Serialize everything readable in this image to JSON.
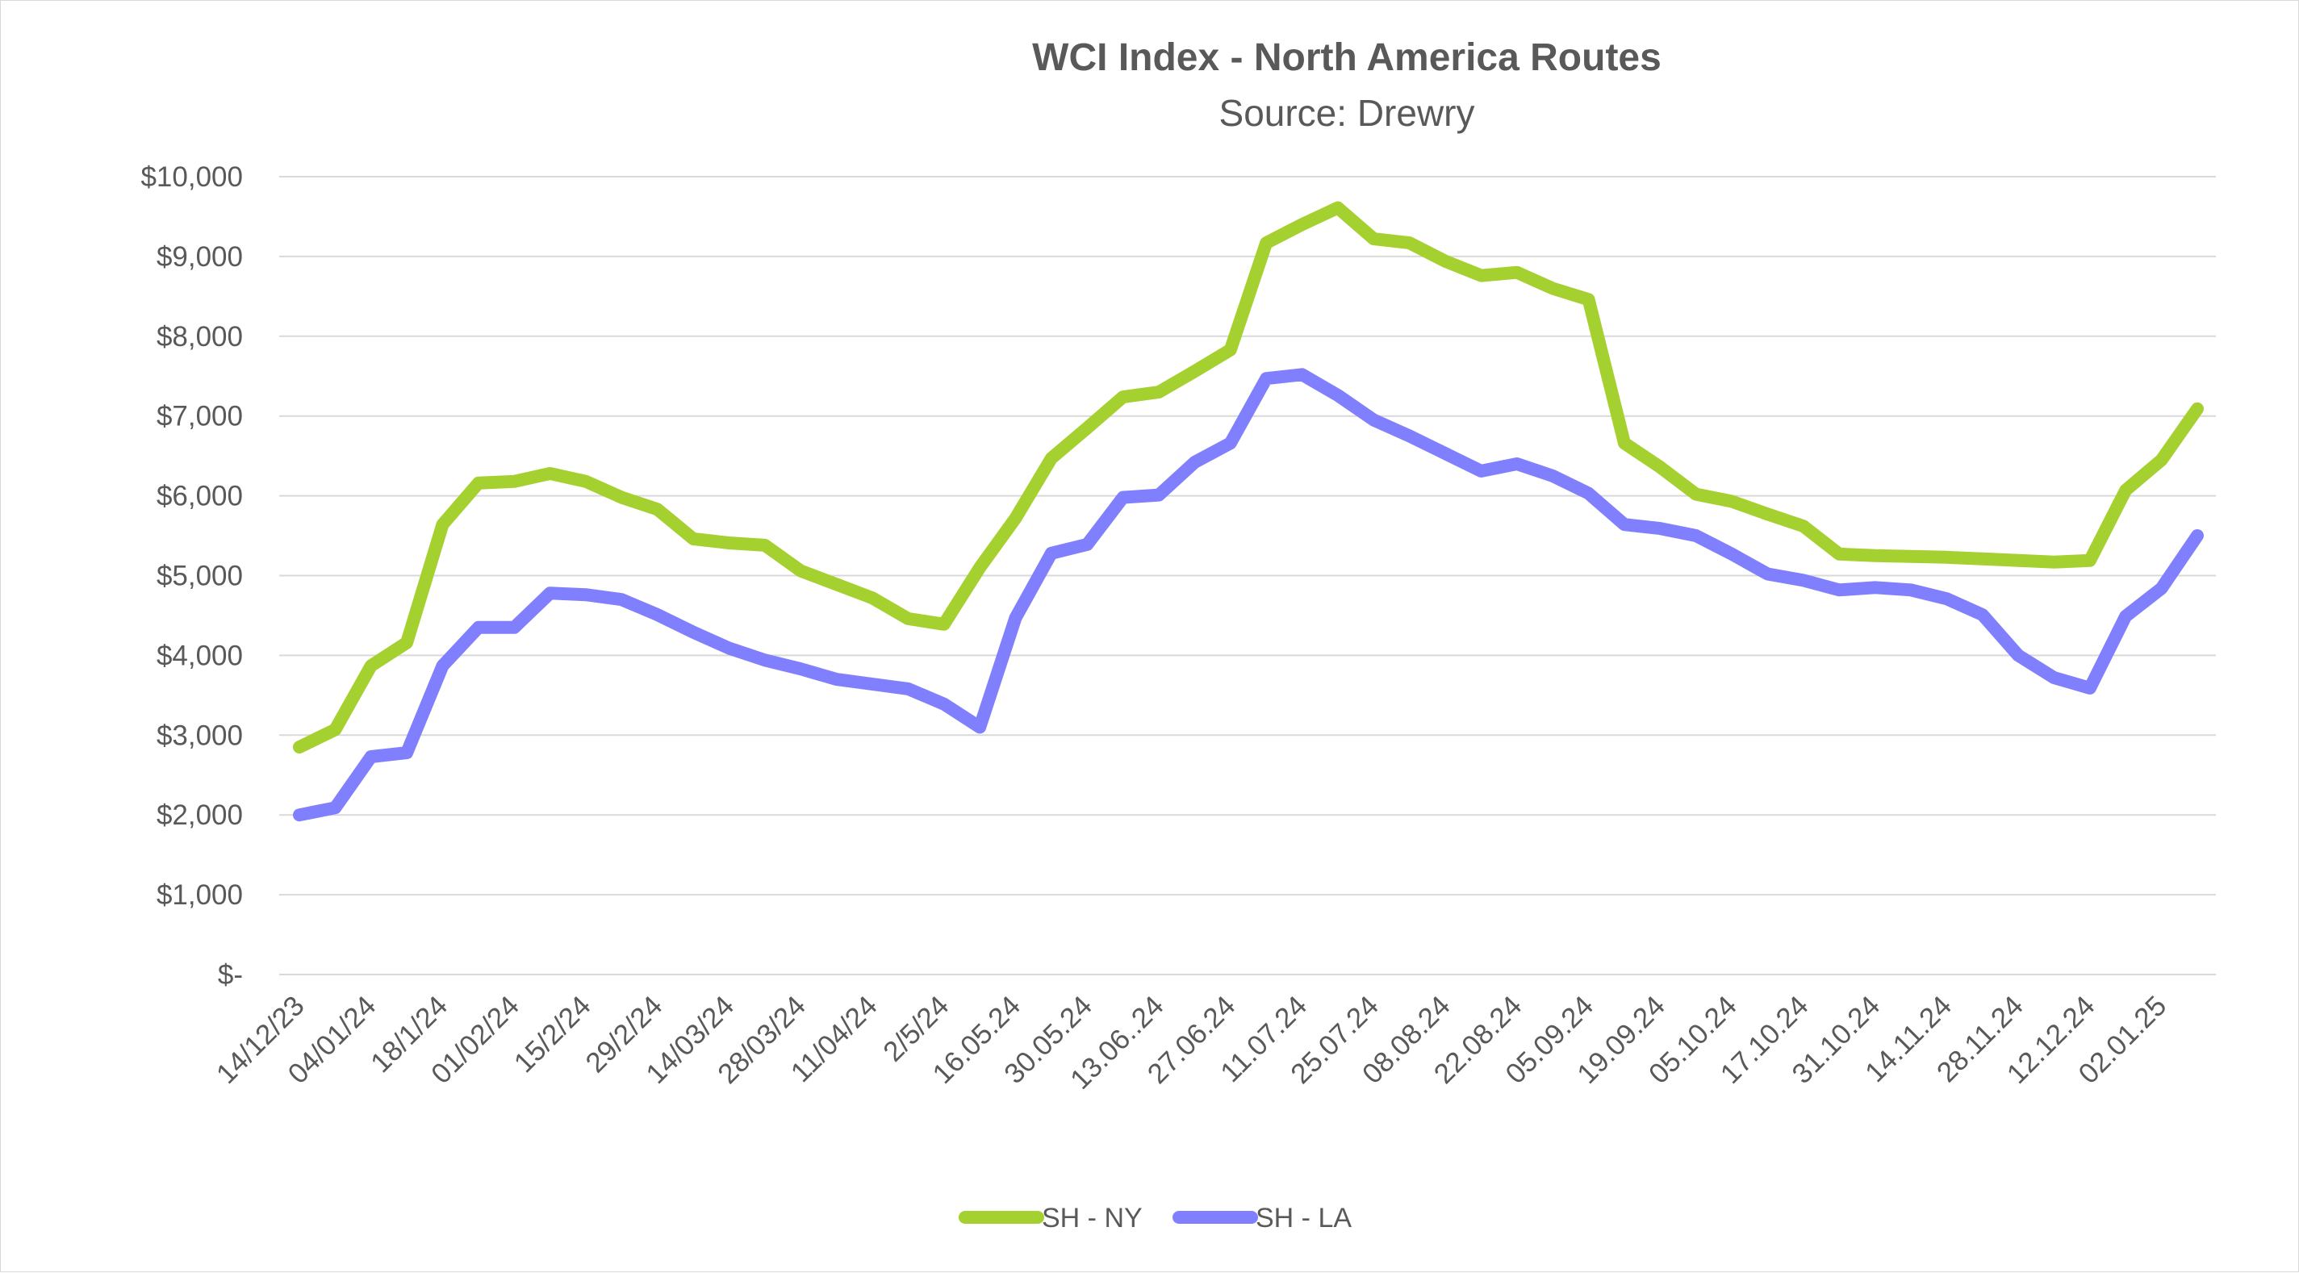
{
  "chart_data": {
    "type": "line",
    "title": "WCI Index - North America Routes",
    "subtitle": "Source: Drewry",
    "ylim": [
      0,
      10000
    ],
    "yticks": [
      0,
      1000,
      2000,
      3000,
      4000,
      5000,
      6000,
      7000,
      8000,
      9000,
      10000
    ],
    "ytick_labels": [
      "$-",
      "$1,000",
      "$2,000",
      "$3,000",
      "$4,000",
      "$5,000",
      "$6,000",
      "$7,000",
      "$8,000",
      "$9,000",
      "$10,000"
    ],
    "tick_labels": [
      "14/12/23",
      "04/01/24",
      "18/1/24",
      "01/02/24",
      "15/2/24",
      "29/2/24",
      "14/03/24",
      "28/03/24",
      "11/04/24",
      "2/5/24",
      "16.05.24",
      "30.05.24",
      "13.06..24",
      "27.06.24",
      "11.07.24",
      "25.07.24",
      "08.08.24",
      "22.08.24",
      "05.09.24",
      "19.09.24",
      "05.10.24",
      "17.10.24",
      "31.10.24",
      "14.11.24",
      "28.11.24",
      "12.12.24",
      "02.01.25"
    ],
    "grid": true,
    "legend_position": "bottom",
    "series": [
      {
        "name": "SH - NY",
        "color": "#a5d130",
        "values": [
          2850,
          3070,
          3870,
          4160,
          5640,
          6160,
          6180,
          6280,
          6180,
          5980,
          5830,
          5460,
          5410,
          5380,
          5060,
          4890,
          4720,
          4460,
          4390,
          5100,
          5720,
          6470,
          6850,
          7240,
          7300,
          7560,
          7830,
          9170,
          9400,
          9610,
          9220,
          9170,
          8940,
          8760,
          8800,
          8600,
          8460,
          6660,
          6360,
          6020,
          5930,
          5770,
          5620,
          5270,
          5250,
          5240,
          5230,
          5210,
          5190,
          5170,
          5190,
          6070,
          6450,
          7090
        ]
      },
      {
        "name": "SH - LA",
        "color": "#8080ff",
        "values": [
          2000,
          2090,
          2730,
          2780,
          3870,
          4350,
          4350,
          4780,
          4760,
          4700,
          4510,
          4290,
          4090,
          3940,
          3830,
          3700,
          3640,
          3580,
          3390,
          3100,
          4470,
          5280,
          5390,
          5980,
          6010,
          6420,
          6660,
          7470,
          7520,
          7260,
          6950,
          6750,
          6530,
          6310,
          6400,
          6250,
          6030,
          5640,
          5590,
          5500,
          5270,
          5020,
          4940,
          4820,
          4850,
          4820,
          4710,
          4510,
          4000,
          3720,
          3590,
          4490,
          4840,
          5500
        ]
      }
    ]
  }
}
